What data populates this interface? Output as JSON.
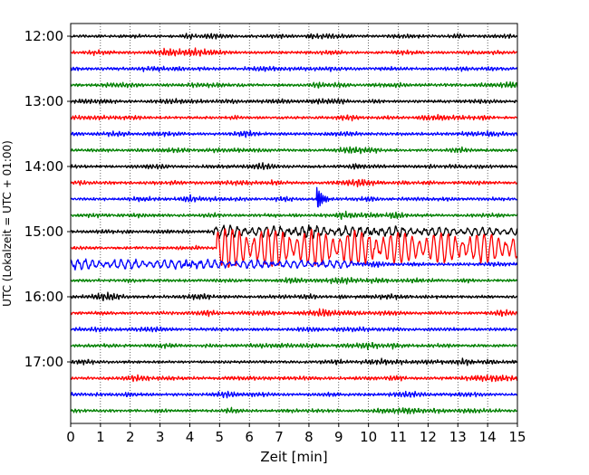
{
  "chart_data": {
    "type": "line",
    "xlabel": "Zeit  [min]",
    "ylabel": "UTC (Lokalzeit = UTC + 01:00)",
    "xlim": [
      0,
      15
    ],
    "x_ticks": [
      0,
      1,
      2,
      3,
      4,
      5,
      6,
      7,
      8,
      9,
      10,
      11,
      12,
      13,
      14,
      15
    ],
    "x_tick_labels": [
      "0",
      "1",
      "2",
      "3",
      "4",
      "5",
      "6",
      "7",
      "8",
      "9",
      "10",
      "11",
      "12",
      "13",
      "14",
      "15"
    ],
    "y_tick_labels": [
      "12:00",
      "13:00",
      "14:00",
      "15:00",
      "16:00",
      "17:00"
    ],
    "rows_per_hour": 4,
    "row_count": 24,
    "row_colors": [
      "#000000",
      "#ff0000",
      "#0000ff",
      "#008000"
    ],
    "x_grid": "dotted",
    "events": [
      {
        "row": 10,
        "start_min": 8.25,
        "end_min": 8.9,
        "shape": "spike",
        "amp": 16
      },
      {
        "row": 12,
        "start_min": 4.8,
        "end_min": 15,
        "shape": "surface-waves",
        "amp": 6
      },
      {
        "row": 13,
        "start_min": 4.9,
        "end_min": 15,
        "shape": "surface-waves",
        "amp": 22
      },
      {
        "row": 14,
        "start_min": 0,
        "end_min": 9.5,
        "shape": "surface-waves",
        "amp": 5
      }
    ]
  }
}
